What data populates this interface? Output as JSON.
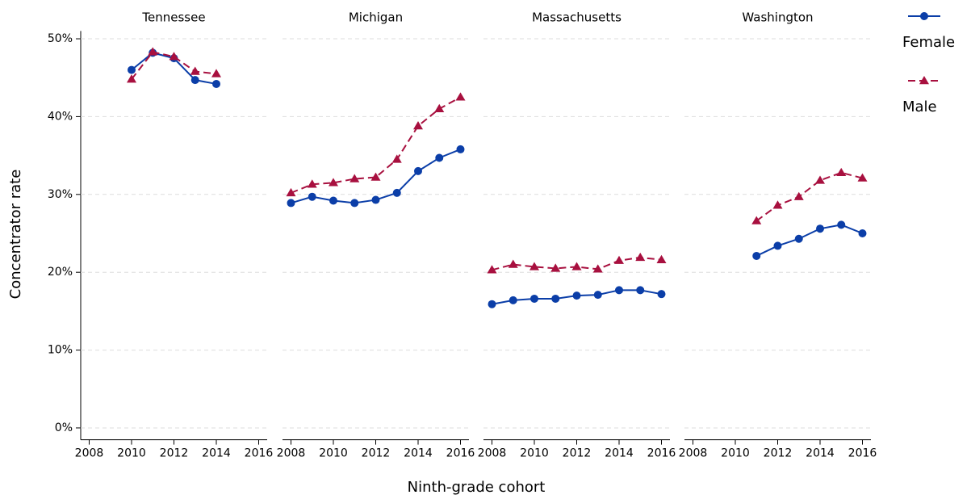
{
  "chart_data": {
    "type": "line",
    "x_label": "Ninth-grade cohort",
    "y_label": "Concentrator rate",
    "ylim": [
      -1,
      51
    ],
    "yticks": [
      {
        "value": 0,
        "label": "0%"
      },
      {
        "value": 10,
        "label": "10%"
      },
      {
        "value": 20,
        "label": "20%"
      },
      {
        "value": 30,
        "label": "30%"
      },
      {
        "value": 40,
        "label": "40%"
      },
      {
        "value": 50,
        "label": "50%"
      }
    ],
    "xlim": [
      2007.6,
      2016.4
    ],
    "xticks": [
      2008,
      2010,
      2012,
      2014,
      2016
    ],
    "grid": true,
    "legend": "right",
    "series": [
      {
        "name": "Female",
        "color": "#0b3ea8",
        "marker": "circle",
        "dash": false
      },
      {
        "name": "Male",
        "color": "#a8103f",
        "marker": "triangle",
        "dash": true
      }
    ],
    "panels": [
      {
        "title": "Tennessee",
        "x": [
          2010,
          2011,
          2012,
          2013,
          2014
        ],
        "series": [
          {
            "values": [
              46.0,
              48.2,
              47.5,
              44.7,
              44.2
            ]
          },
          {
            "values": [
              44.8,
              48.3,
              47.7,
              45.8,
              45.5
            ]
          }
        ]
      },
      {
        "title": "Michigan",
        "x": [
          2008,
          2009,
          2010,
          2011,
          2012,
          2013,
          2014,
          2015,
          2016
        ],
        "series": [
          {
            "values": [
              28.9,
              29.7,
              29.2,
              28.9,
              29.3,
              30.2,
              33.0,
              34.7,
              35.8
            ]
          },
          {
            "values": [
              30.2,
              31.3,
              31.5,
              32.0,
              32.2,
              34.5,
              38.8,
              41.0,
              42.5
            ]
          }
        ]
      },
      {
        "title": "Massachusetts",
        "x": [
          2008,
          2009,
          2010,
          2011,
          2012,
          2013,
          2014,
          2015,
          2016
        ],
        "series": [
          {
            "values": [
              15.9,
              16.4,
              16.6,
              16.6,
              17.0,
              17.1,
              17.7,
              17.7,
              17.2
            ]
          },
          {
            "values": [
              20.3,
              21.0,
              20.7,
              20.5,
              20.7,
              20.4,
              21.5,
              21.9,
              21.6
            ]
          }
        ]
      },
      {
        "title": "Washington",
        "x": [
          2011,
          2012,
          2013,
          2014,
          2015,
          2016
        ],
        "series": [
          {
            "values": [
              22.1,
              23.4,
              24.3,
              25.6,
              26.1,
              25.0
            ]
          },
          {
            "values": [
              26.6,
              28.6,
              29.7,
              31.8,
              32.8,
              32.1
            ]
          }
        ]
      }
    ]
  }
}
